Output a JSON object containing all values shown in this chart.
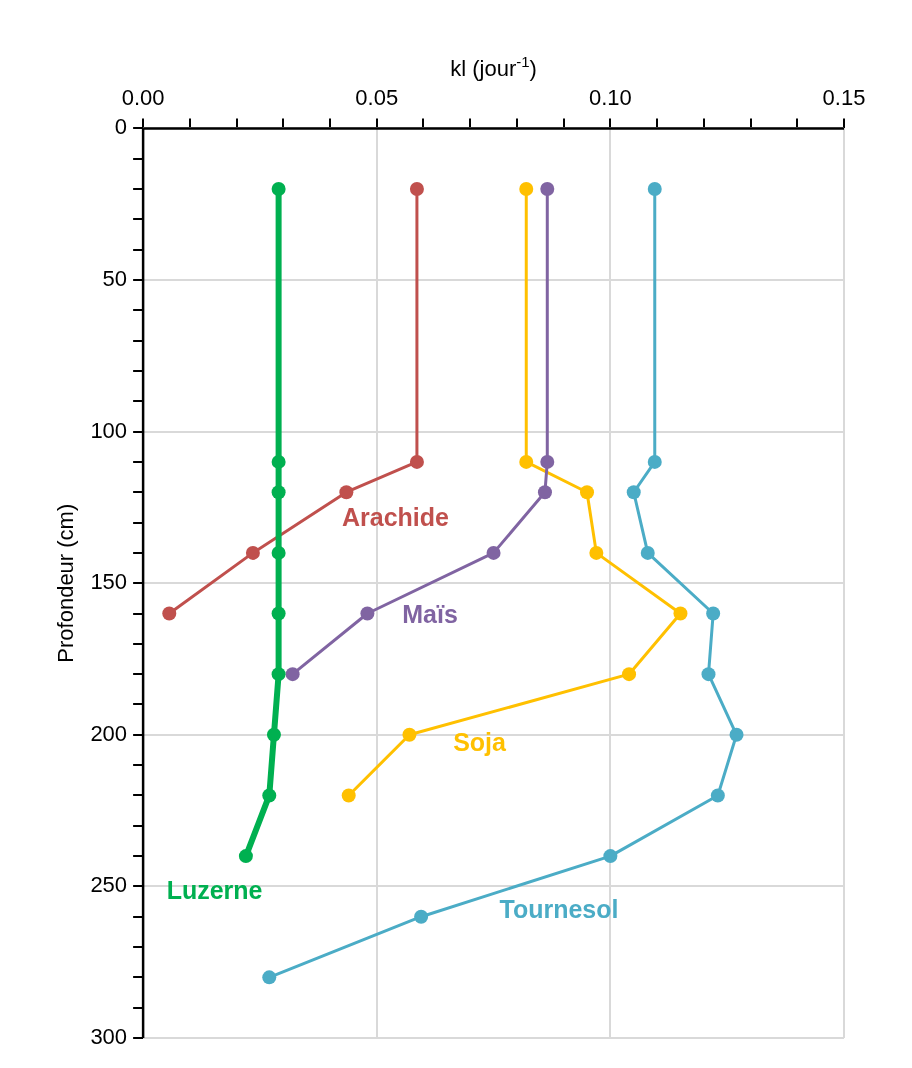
{
  "chart_data": {
    "type": "line",
    "xlabel": "kl (jour$^{-1}$)",
    "ylabel": "Profondeur (cm)",
    "xlim": [
      0,
      0.15
    ],
    "ylim": [
      300,
      0
    ],
    "xticks": [
      {
        "value": 0,
        "label": "0.00"
      },
      {
        "value": 0.01,
        "label": null
      },
      {
        "value": 0.02,
        "label": null
      },
      {
        "value": 0.03,
        "label": null
      },
      {
        "value": 0.04,
        "label": null
      },
      {
        "value": 0.05,
        "label": "0.05"
      },
      {
        "value": 0.06,
        "label": null
      },
      {
        "value": 0.07,
        "label": null
      },
      {
        "value": 0.08,
        "label": null
      },
      {
        "value": 0.09,
        "label": null
      },
      {
        "value": 0.1,
        "label": "0.10"
      },
      {
        "value": 0.11,
        "label": null
      },
      {
        "value": 0.12,
        "label": null
      },
      {
        "value": 0.13,
        "label": null
      },
      {
        "value": 0.14,
        "label": null
      },
      {
        "value": 0.15,
        "label": "0.15"
      }
    ],
    "yticks": [
      0,
      {
        "value": 10,
        "label": null
      },
      {
        "value": 20,
        "label": null
      },
      {
        "value": 30,
        "label": null
      },
      {
        "value": 40,
        "label": null
      },
      50,
      {
        "value": 60,
        "label": null
      },
      {
        "value": 70,
        "label": null
      },
      {
        "value": 80,
        "label": null
      },
      {
        "value": 90,
        "label": null
      },
      100,
      {
        "value": 110,
        "label": null
      },
      {
        "value": 120,
        "label": null
      },
      {
        "value": 130,
        "label": null
      },
      {
        "value": 140,
        "label": null
      },
      150,
      {
        "value": 160,
        "label": null
      },
      {
        "value": 170,
        "label": null
      },
      {
        "value": 180,
        "label": null
      },
      {
        "value": 190,
        "label": null
      },
      200,
      {
        "value": 210,
        "label": null
      },
      {
        "value": 220,
        "label": null
      },
      {
        "value": 230,
        "label": null
      },
      {
        "value": 240,
        "label": null
      },
      250,
      {
        "value": 260,
        "label": null
      },
      {
        "value": 270,
        "label": null
      },
      {
        "value": 280,
        "label": null
      },
      {
        "value": 290,
        "label": null
      },
      300
    ],
    "grid": true,
    "marker": "circle",
    "line_style": "solid",
    "legend": false,
    "series": [
      {
        "name": "Luzerne",
        "color": "#00b050",
        "x": [
          0.029,
          0.029,
          0.029,
          0.029,
          0.029,
          0.029,
          0.028,
          0.027,
          0.022
        ],
        "values": [
          20,
          110,
          120,
          140,
          160,
          180,
          200,
          220,
          240
        ]
      },
      {
        "name": "Arachide",
        "color": "#c0504d",
        "x": [
          0.0586,
          0.0586,
          0.0435,
          0.0235,
          0.0056
        ],
        "values": [
          20,
          110,
          120,
          140,
          160
        ]
      },
      {
        "name": "Maïs",
        "color": "#8064a2",
        "x": [
          0.0865,
          0.0865,
          0.086,
          0.075,
          0.048,
          0.032
        ],
        "values": [
          20,
          110,
          120,
          140,
          160,
          180
        ]
      },
      {
        "name": "Soja",
        "color": "#ffc000",
        "x": [
          0.082,
          0.082,
          0.095,
          0.097,
          0.115,
          0.104,
          0.057,
          0.044
        ],
        "values": [
          20,
          110,
          120,
          140,
          160,
          180,
          200,
          220
        ]
      },
      {
        "name": "Tournesol",
        "color": "#4bacc6",
        "x": [
          0.1095,
          0.1095,
          0.105,
          0.108,
          0.122,
          0.121,
          0.127,
          0.123,
          0.1,
          0.0595,
          0.027
        ],
        "values": [
          20,
          110,
          120,
          140,
          160,
          180,
          200,
          220,
          240,
          260,
          280
        ]
      }
    ]
  }
}
